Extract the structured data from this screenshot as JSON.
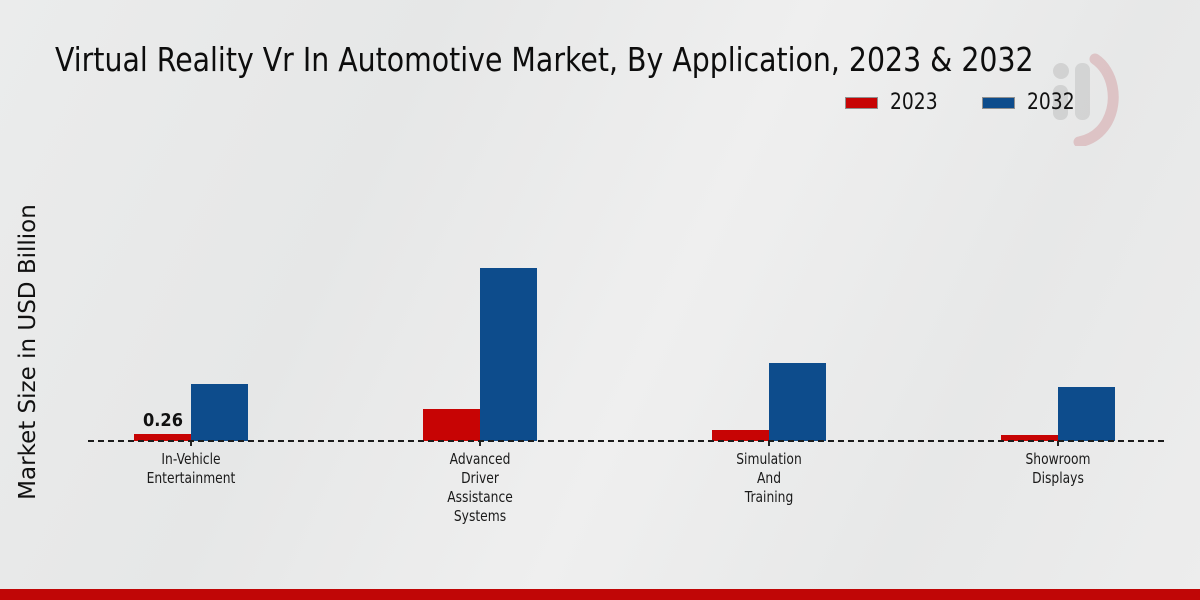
{
  "title": "Virtual Reality Vr In Automotive Market, By Application, 2023 & 2032",
  "colors": {
    "bar_2023": "#c70404",
    "bar_2032": "#0d4c8c",
    "footer_strip": "#c00606",
    "background": "#e9eaea",
    "text": "#111111"
  },
  "watermark_name": "mrfr-logo-watermark",
  "chart_data": {
    "type": "bar",
    "title": "Virtual Reality Vr In Automotive Market, By Application, 2023 & 2032",
    "categories": [
      "In-Vehicle Entertainment",
      "Advanced Driver Assistance Systems",
      "Simulation And Training",
      "Showroom Displays"
    ],
    "series": [
      {
        "name": "2023",
        "color": "#c70404",
        "values": [
          0.26,
          1.2,
          0.4,
          0.22
        ]
      },
      {
        "name": "2032",
        "color": "#0d4c8c",
        "values": [
          2.1,
          6.4,
          2.9,
          2.0
        ]
      }
    ],
    "annotations": [
      {
        "series": "2023",
        "category_index": 0,
        "text": "0.26"
      }
    ],
    "xlabel": "",
    "ylabel": "Market Size in USD Billion",
    "ylim": [
      0,
      7
    ],
    "grid": false,
    "y_axis_ticks_visible": false,
    "legend_position": "top-right",
    "baseline_style": "dashed"
  }
}
